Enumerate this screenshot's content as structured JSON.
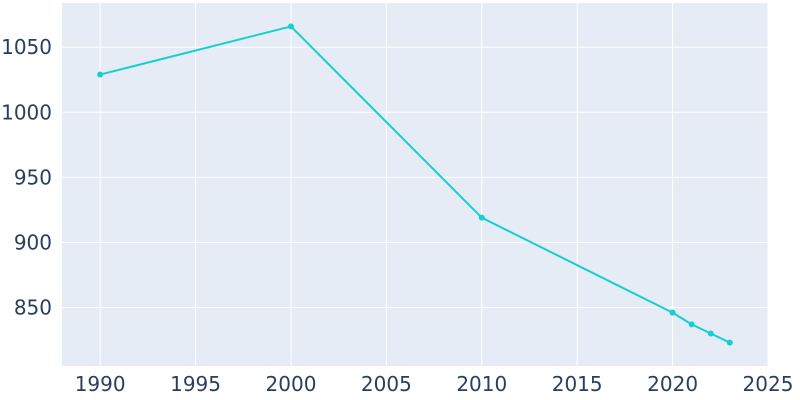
{
  "chart_data": {
    "type": "line",
    "title": "",
    "xlabel": "",
    "ylabel": "",
    "xlim": [
      1988,
      2025
    ],
    "ylim": [
      805,
      1084
    ],
    "grid": true,
    "x_ticks": [
      1990,
      1995,
      2000,
      2005,
      2010,
      2015,
      2020,
      2025
    ],
    "y_ticks": [
      850,
      900,
      950,
      1000,
      1050
    ],
    "colors": {
      "plot_background": "#e5ecf6",
      "grid": "#ffffff",
      "line": "#17cfcf",
      "tick_text": "#2a3f5f"
    },
    "series": [
      {
        "x": [
          1990,
          2000,
          2010,
          2020,
          2021,
          2022,
          2023
        ],
        "y": [
          1029,
          1066,
          919,
          846,
          837,
          830,
          823
        ]
      }
    ]
  }
}
